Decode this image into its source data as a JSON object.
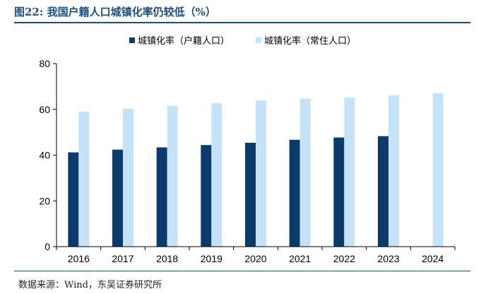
{
  "figure": {
    "title": "图22:  我国户籍人口城镇化率仍较低（%）",
    "source": "数据来源：Wind，东吴证券研究所"
  },
  "chart_data": {
    "type": "bar",
    "title": "",
    "xlabel": "",
    "ylabel": "",
    "categories": [
      "2016",
      "2017",
      "2018",
      "2019",
      "2020",
      "2021",
      "2022",
      "2023",
      "2024"
    ],
    "series": [
      {
        "name": "城镇化率（户籍人口）",
        "color": "#0b3a6b",
        "values": [
          41.2,
          42.4,
          43.4,
          44.4,
          45.4,
          46.7,
          47.7,
          48.3,
          null
        ]
      },
      {
        "name": "城镇化率（常住人口）",
        "color": "#c5e2f8",
        "values": [
          59.0,
          60.2,
          61.5,
          62.7,
          63.9,
          64.7,
          65.2,
          66.2,
          67.0
        ]
      }
    ],
    "ylim": [
      0,
      80
    ],
    "yticks": [
      0,
      20,
      40,
      60,
      80
    ],
    "grid": false,
    "legend_position": "top"
  }
}
